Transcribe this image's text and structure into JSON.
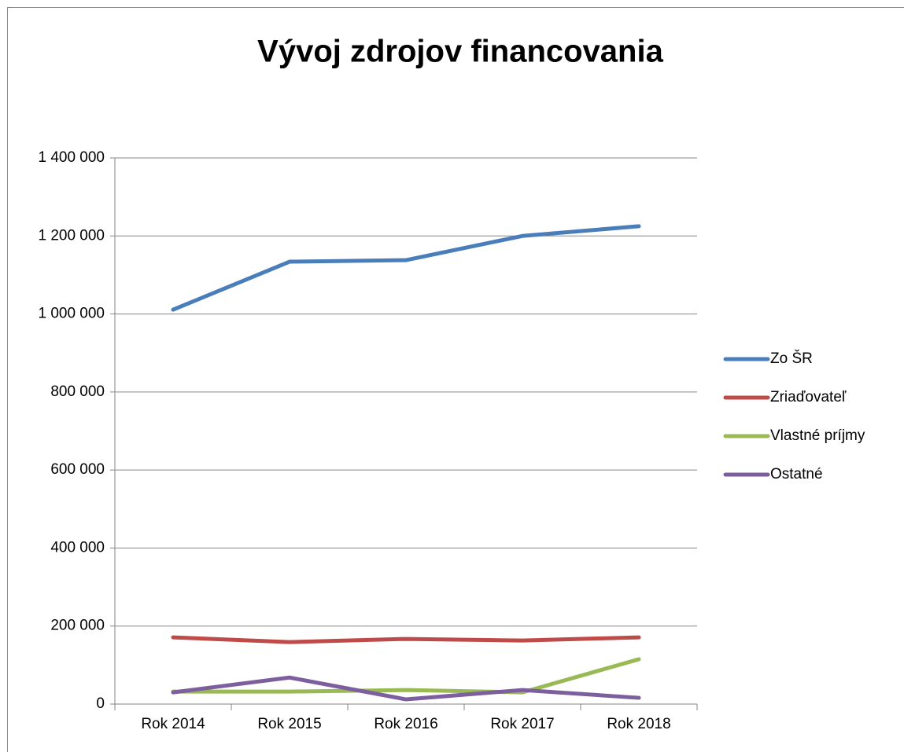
{
  "chart_data": {
    "type": "line",
    "title": "Vývoj zdrojov financovania",
    "categories": [
      "Rok 2014",
      "Rok 2015",
      "Rok 2016",
      "Rok 2017",
      "Rok 2018"
    ],
    "series": [
      {
        "name": "Zo ŠR",
        "color": "#4a7ebb",
        "values": [
          1011000,
          1134000,
          1138000,
          1200000,
          1225000
        ]
      },
      {
        "name": "Zriaďovateľ",
        "color": "#be4b48",
        "values": [
          171000,
          159000,
          167000,
          163000,
          171000
        ]
      },
      {
        "name": "Vlastné príjmy",
        "color": "#98b954",
        "values": [
          32000,
          32000,
          36000,
          30000,
          115000
        ]
      },
      {
        "name": "Ostatné",
        "color": "#7d5fa0",
        "values": [
          30000,
          68000,
          12000,
          36000,
          16000
        ]
      }
    ],
    "ylim": [
      0,
      1400000
    ],
    "yticks": [
      0,
      {
        "value": 200000,
        "label": "200 000"
      },
      {
        "value": 400000,
        "label": "400 000"
      },
      {
        "value": 600000,
        "label": "600 000"
      },
      {
        "value": 800000,
        "label": "800 000"
      },
      {
        "value": 1000000,
        "label": "1 000 000"
      },
      {
        "value": 1200000,
        "label": "1 200 000"
      },
      {
        "value": 1400000,
        "label": "1 400 000"
      }
    ],
    "grid": true,
    "legend": "right"
  }
}
